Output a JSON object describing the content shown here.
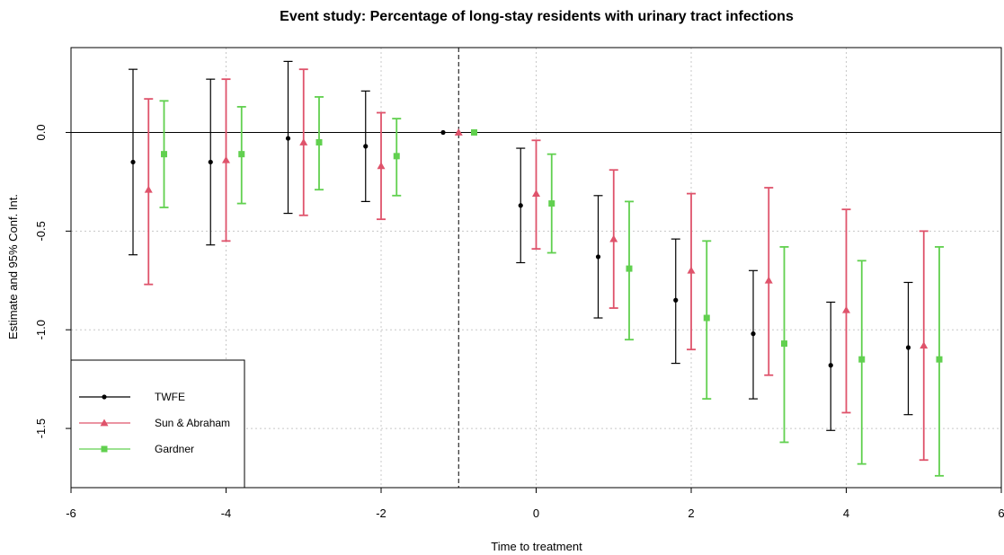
{
  "chart_data": {
    "type": "scatter",
    "title": "Event study: Percentage of long-stay residents with urinary tract infections",
    "xlabel": "Time to treatment",
    "ylabel": "Estimate and 95% Conf. Int.",
    "xlim": [
      -6,
      6
    ],
    "ylim": [
      -1.8,
      0.43
    ],
    "x_ticks": [
      -6,
      -4,
      -2,
      0,
      2,
      4,
      6
    ],
    "y_ticks": [
      0.0,
      -0.5,
      -1.0,
      -1.5
    ],
    "x_tick_labels": [
      "-6",
      "-4",
      "-2",
      "0",
      "2",
      "4",
      "6"
    ],
    "y_tick_labels": [
      "0.0",
      "-0.5",
      "-1.0",
      "-1.5"
    ],
    "grid": true,
    "reference_line_y": 0,
    "reference_line_x": -1,
    "legend_position": "bottom-left",
    "series": [
      {
        "name": "TWFE",
        "color": "#000000",
        "marker": "circle",
        "offset": -0.2,
        "x": [
          -5,
          -4,
          -3,
          -2,
          -1,
          0,
          1,
          2,
          3,
          4,
          5
        ],
        "estimate": [
          -0.15,
          -0.15,
          -0.03,
          -0.07,
          0.0,
          -0.37,
          -0.63,
          -0.85,
          -1.02,
          -1.18,
          -1.09
        ],
        "ci_low": [
          -0.62,
          -0.57,
          -0.41,
          -0.35,
          null,
          -0.66,
          -0.94,
          -1.17,
          -1.35,
          -1.51,
          -1.43
        ],
        "ci_high": [
          0.32,
          0.27,
          0.36,
          0.21,
          null,
          -0.08,
          -0.32,
          -0.54,
          -0.7,
          -0.86,
          -0.76
        ]
      },
      {
        "name": "Sun & Abraham",
        "color": "#DF536B",
        "marker": "triangle",
        "offset": 0.0,
        "x": [
          -5,
          -4,
          -3,
          -2,
          -1,
          0,
          1,
          2,
          3,
          4,
          5
        ],
        "estimate": [
          -0.29,
          -0.14,
          -0.05,
          -0.17,
          0.0,
          -0.31,
          -0.54,
          -0.7,
          -0.75,
          -0.9,
          -1.08
        ],
        "ci_low": [
          -0.77,
          -0.55,
          -0.42,
          -0.44,
          null,
          -0.59,
          -0.89,
          -1.1,
          -1.23,
          -1.42,
          -1.66
        ],
        "ci_high": [
          0.17,
          0.27,
          0.32,
          0.1,
          null,
          -0.04,
          -0.19,
          -0.31,
          -0.28,
          -0.39,
          -0.5
        ]
      },
      {
        "name": "Gardner",
        "color": "#61D04F",
        "marker": "square",
        "offset": 0.2,
        "x": [
          -5,
          -4,
          -3,
          -2,
          -1,
          0,
          1,
          2,
          3,
          4,
          5
        ],
        "estimate": [
          -0.11,
          -0.11,
          -0.05,
          -0.12,
          0.0,
          -0.36,
          -0.69,
          -0.94,
          -1.07,
          -1.15,
          -1.15
        ],
        "ci_low": [
          -0.38,
          -0.36,
          -0.29,
          -0.32,
          null,
          -0.61,
          -1.05,
          -1.35,
          -1.57,
          -1.68,
          -1.74
        ],
        "ci_high": [
          0.16,
          0.13,
          0.18,
          0.07,
          null,
          -0.11,
          -0.35,
          -0.55,
          -0.58,
          -0.65,
          -0.58
        ]
      }
    ]
  }
}
